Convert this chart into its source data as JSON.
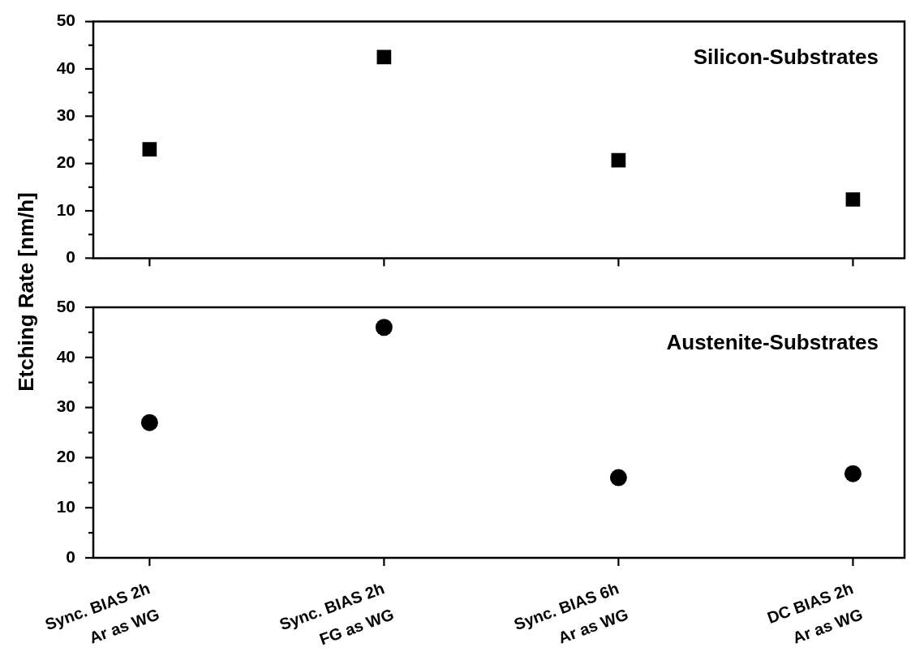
{
  "chart_data": [
    {
      "type": "scatter",
      "ylabel": "Etching Rate [nm/h]",
      "annotations": [
        "Silicon-Substrates"
      ],
      "categories": [
        "Sync. BIAS 2h\nAr as WG",
        "Sync. BIAS 2h\nFG as WG",
        "Sync. BIAS 6h\nAr as WG",
        "DC BIAS 2h\nAr as WG"
      ],
      "series": [
        {
          "color": "#000000",
          "values": [
            23.0,
            42.5,
            20.7,
            12.4
          ]
        }
      ],
      "marker": "square",
      "ylim": [
        0,
        50
      ],
      "yticks": [
        0,
        {
          "value": 5,
          "label": null
        },
        10,
        {
          "value": 15,
          "label": null
        },
        20,
        {
          "value": 25,
          "label": null
        },
        30,
        {
          "value": 35,
          "label": null
        },
        40,
        {
          "value": 45,
          "label": null
        },
        50
      ],
      "tick_labels": "y",
      "legend": false,
      "grid": false
    },
    {
      "type": "scatter",
      "annotations": [
        "Austenite-Substrates"
      ],
      "categories": [
        "Sync. BIAS 2h\nAr as WG",
        "Sync. BIAS 2h\nFG as WG",
        "Sync. BIAS 6h\nAr as WG",
        "DC BIAS 2h\nAr as WG"
      ],
      "series": [
        {
          "color": "#000000",
          "values": [
            27.0,
            46.0,
            16.0,
            16.8
          ]
        }
      ],
      "marker": "circle",
      "ylim": [
        0,
        50
      ],
      "yticks": [
        0,
        {
          "value": 5,
          "label": null
        },
        10,
        {
          "value": 15,
          "label": null
        },
        20,
        {
          "value": 25,
          "label": null
        },
        30,
        {
          "value": 35,
          "label": null
        },
        40,
        {
          "value": 45,
          "label": null
        },
        50
      ],
      "legend": false,
      "grid": false
    }
  ]
}
